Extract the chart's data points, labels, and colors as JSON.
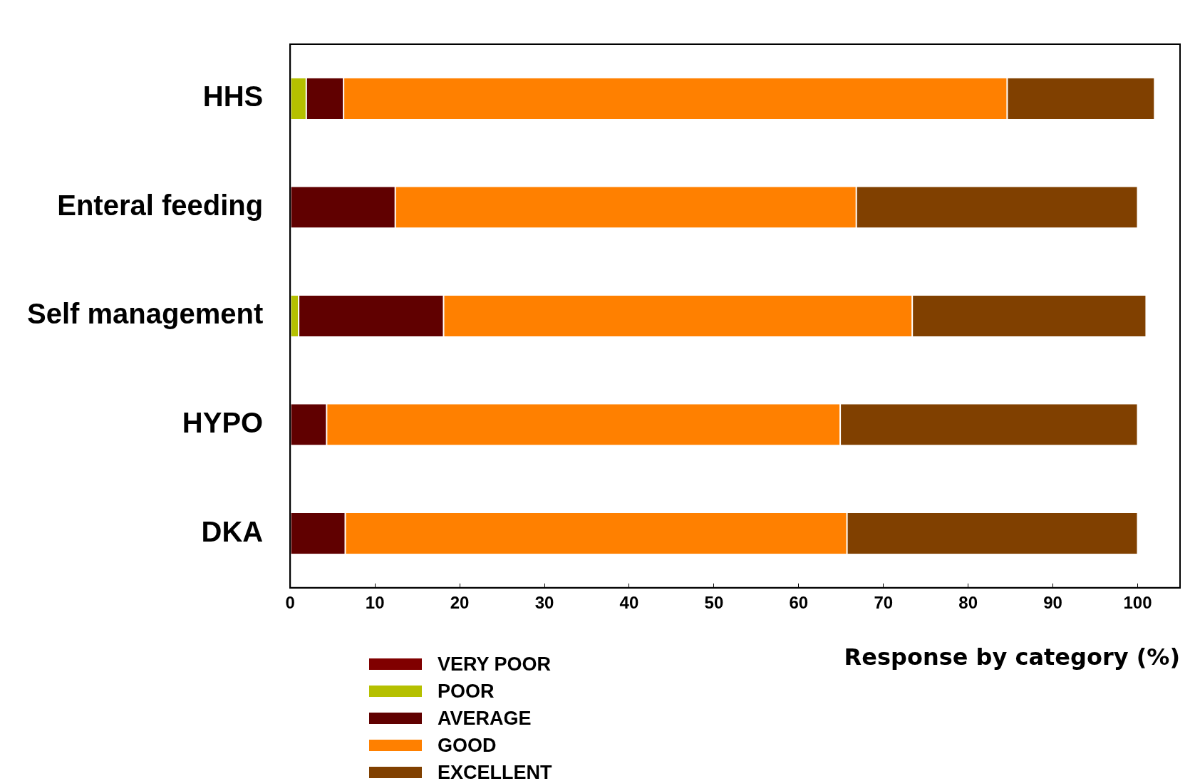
{
  "chart_data": {
    "type": "bar",
    "orientation": "horizontal",
    "stacked": true,
    "xlabel": "Response by category (%)",
    "categories": [
      "HHS",
      "Enteral feeding",
      "Self management",
      "HYPO",
      "DKA"
    ],
    "series": [
      {
        "name": "VERY POOR",
        "color": "#800000",
        "values": [
          0,
          0,
          0,
          0,
          0
        ]
      },
      {
        "name": "POOR",
        "color": "#b5c000",
        "values": [
          1.9,
          0,
          1,
          0,
          0
        ]
      },
      {
        "name": "AVERAGE",
        "color": "#600000",
        "values": [
          4.4,
          12.4,
          17.1,
          4.3,
          6.5
        ]
      },
      {
        "name": "GOOD",
        "color": "#ff8000",
        "values": [
          78.3,
          54.4,
          55.3,
          60.6,
          59.2
        ]
      },
      {
        "name": "EXCELLENT",
        "color": "#804000",
        "values": [
          17.4,
          33.2,
          27.6,
          35.1,
          34.3
        ]
      }
    ],
    "xlim": [
      0,
      105
    ],
    "xticks": [
      0,
      10,
      20,
      30,
      40,
      50,
      60,
      70,
      80,
      90,
      100
    ],
    "grid": false,
    "legend": "bottom left"
  }
}
